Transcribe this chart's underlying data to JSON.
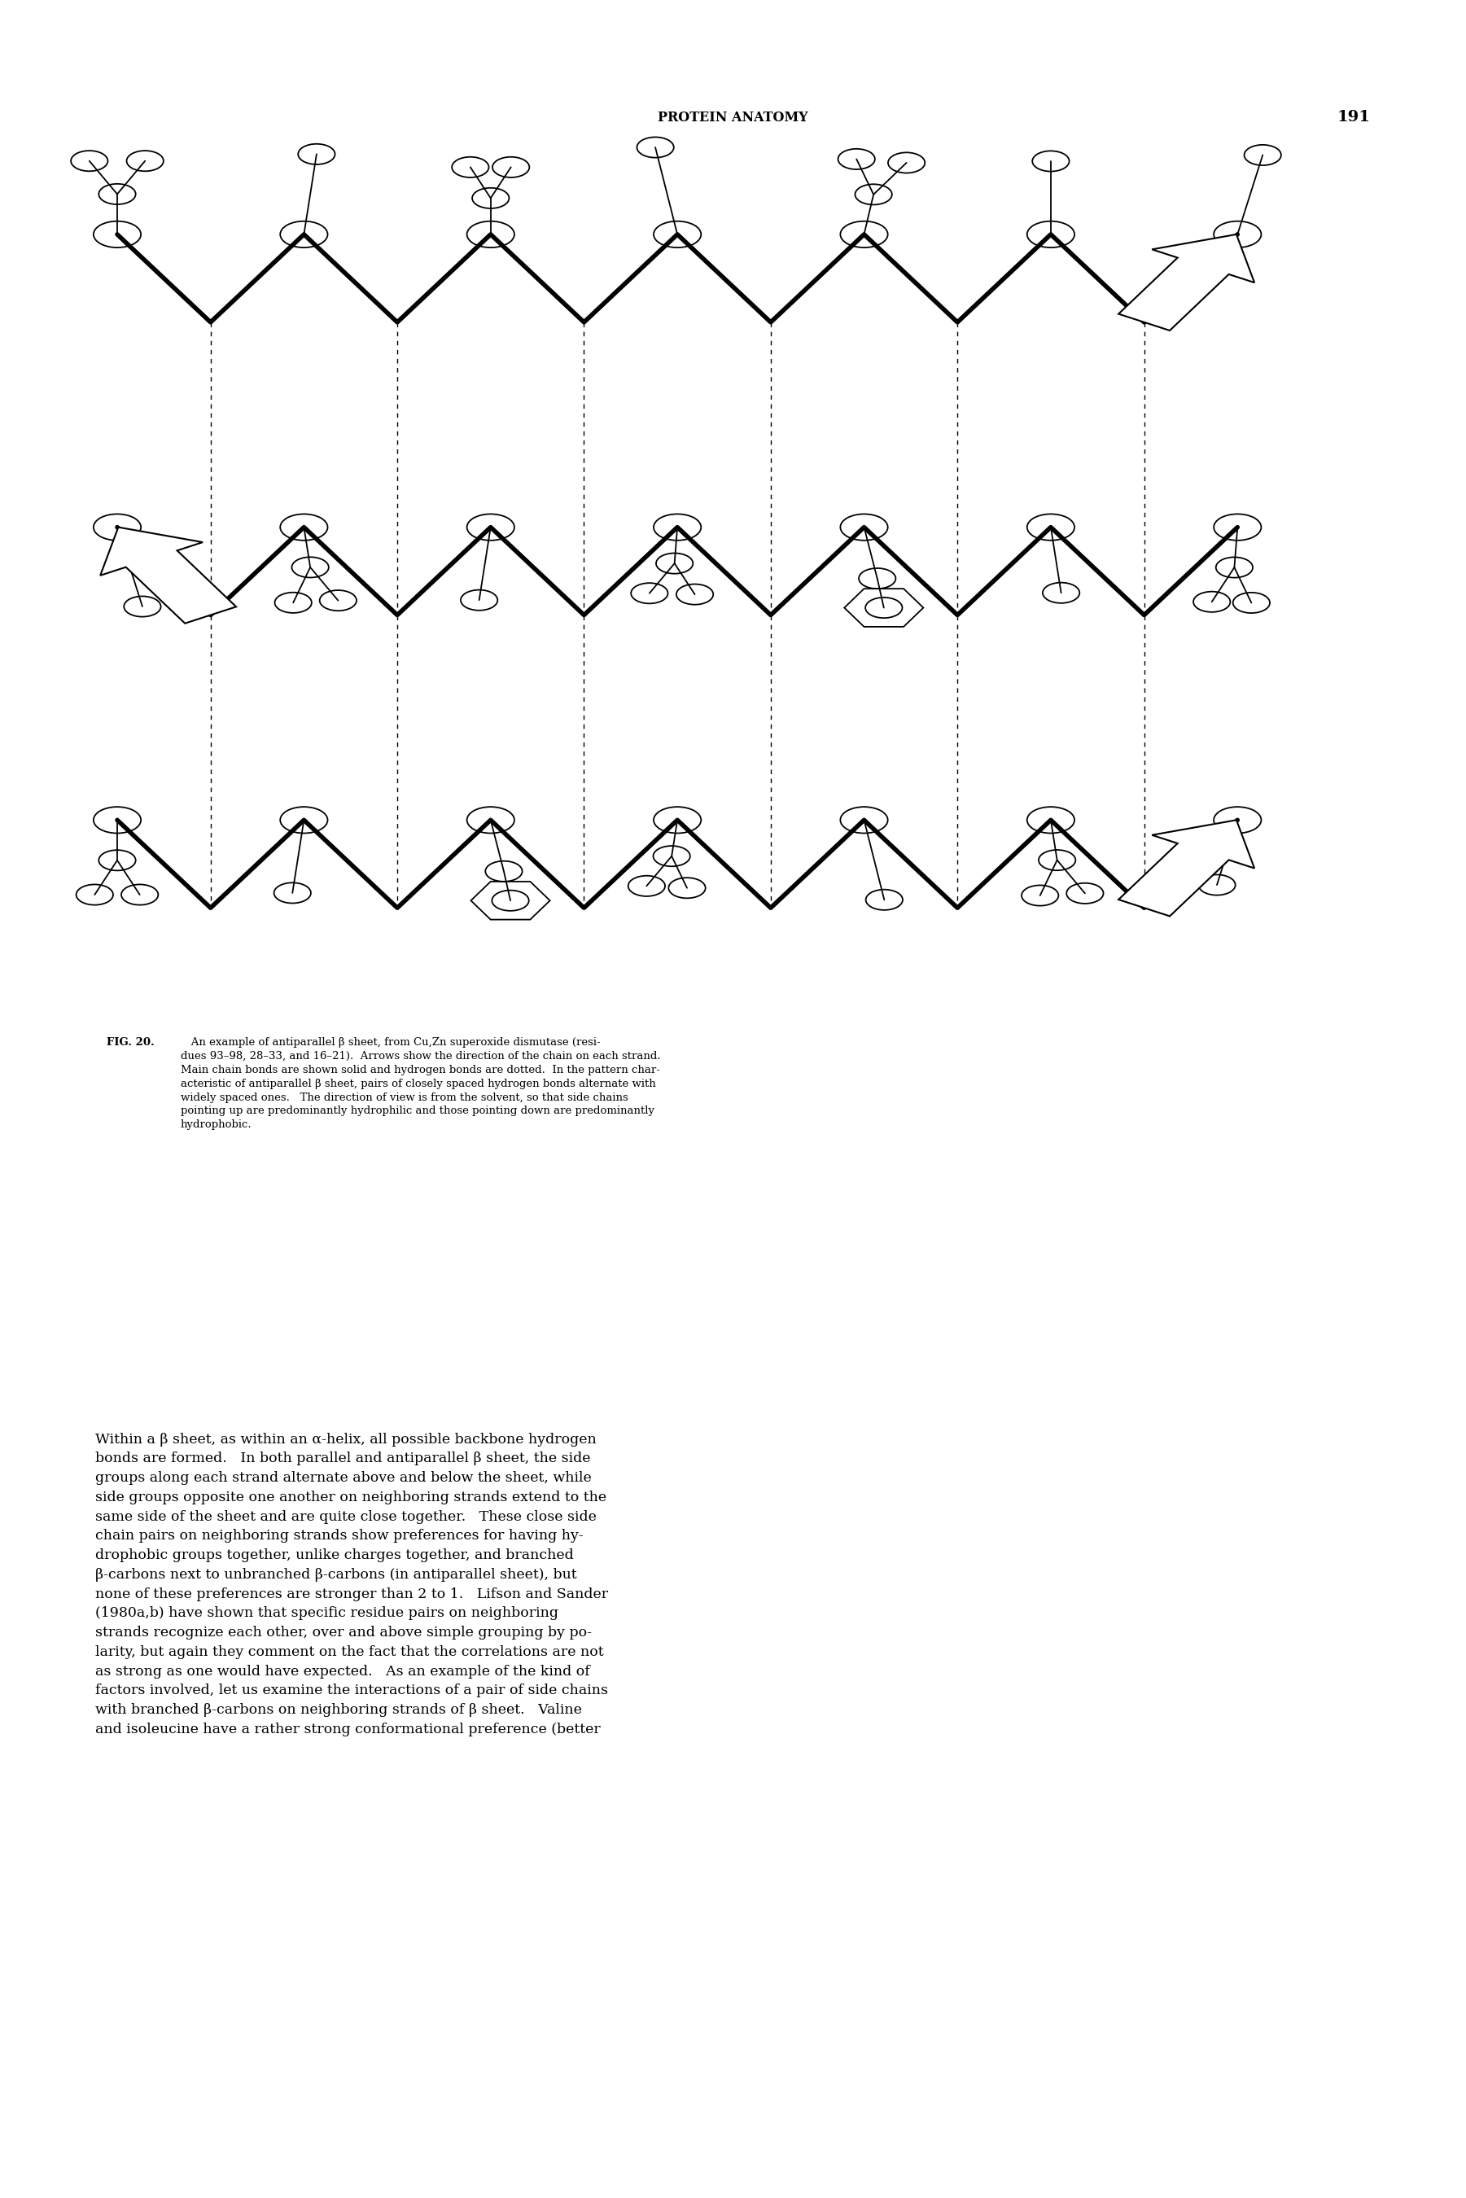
{
  "page_width": 18.01,
  "page_height": 27.0,
  "header_text": "PROTEIN ANATOMY",
  "header_page": "191",
  "caption_title": "FIG. 20.",
  "caption_body": "   An example of antiparallel β sheet, from Cu,Zn superoxide dismutase (resi-\ndues 93–98, 28–33, and 16–21).  Arrows show the direction of the chain on each strand.\nMain chain bonds are shown solid and hydrogen bonds are dotted.  In the pattern char-\nacteristic of antiparallel β sheet, pairs of closely spaced hydrogen bonds alternate with\nwidely spaced ones.   The direction of view is from the solvent, so that side chains\npointing up are predominantly hydrophilic and those pointing down are predominantly\nhydrophobic.",
  "body_text_line1": "Within a β sheet, as within an α-helix, all possible backbone hydrogen",
  "body_lines": [
    "Within a β sheet, as within an α-helix, all possible backbone hydrogen",
    "bonds are formed.   In both parallel and antiparallel β sheet, the side",
    "groups along each strand alternate above and below the sheet, while",
    "side groups opposite one another on neighboring strands extend to the",
    "same side of the sheet and are quite close together.   These close side",
    "chain pairs on neighboring strands show preferences for having hy-",
    "drophobic groups together, unlike charges together, and branched",
    "β-carbons next to unbranched β-carbons (in antiparallel sheet), but",
    "none of these preferences are stronger than 2 to 1.   Lifson and Sander",
    "(1980a,b) have shown that specific residue pairs on neighboring",
    "strands recognize each other, over and above simple grouping by po-",
    "larity, but again they comment on the fact that the correlations are not",
    "as strong as one would have expected.   As an example of the kind of",
    "factors involved, let us examine the interactions of a pair of side chains",
    "with branched β-carbons on neighboring strands of β sheet.   Valine",
    "and isoleucine have a rather strong conformational preference (better"
  ]
}
